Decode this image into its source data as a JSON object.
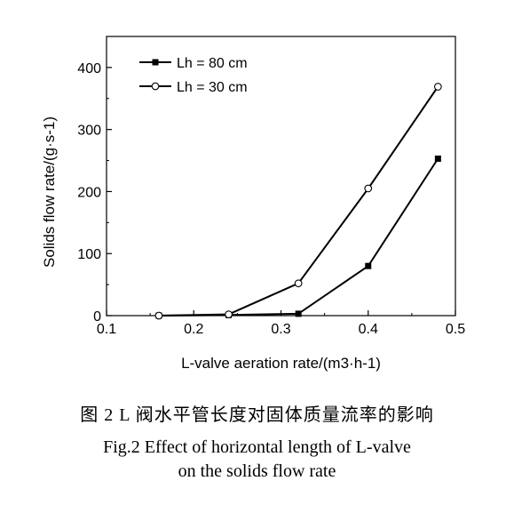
{
  "chart_data": {
    "type": "line",
    "xlabel": "L-valve aeration rate/(m3·h-1)",
    "ylabel": "Solids flow rate/(g·s-1)",
    "xlim": [
      0.1,
      0.5
    ],
    "ylim": [
      0,
      450
    ],
    "xticks": [
      "0.1",
      "0.2",
      "0.3",
      "0.4",
      "0.5"
    ],
    "yticks": [
      "0",
      "100",
      "200",
      "300",
      "400"
    ],
    "grid": false,
    "legend_position": "top-left",
    "series": [
      {
        "name": "Lh = 80 cm",
        "marker": "filled-square",
        "x": [
          0.16,
          0.24,
          0.32,
          0.4,
          0.48
        ],
        "y": [
          0,
          1,
          3,
          80,
          253
        ]
      },
      {
        "name": "Lh = 30 cm",
        "marker": "open-circle",
        "x": [
          0.16,
          0.24,
          0.32,
          0.4,
          0.48
        ],
        "y": [
          0,
          2,
          52,
          205,
          369
        ]
      }
    ]
  },
  "caption": {
    "chinese": "图 2  L 阀水平管长度对固体质量流率的影响",
    "english_line1": "Fig.2  Effect of horizontal length of L-valve",
    "english_line2": "on the solids flow rate"
  }
}
